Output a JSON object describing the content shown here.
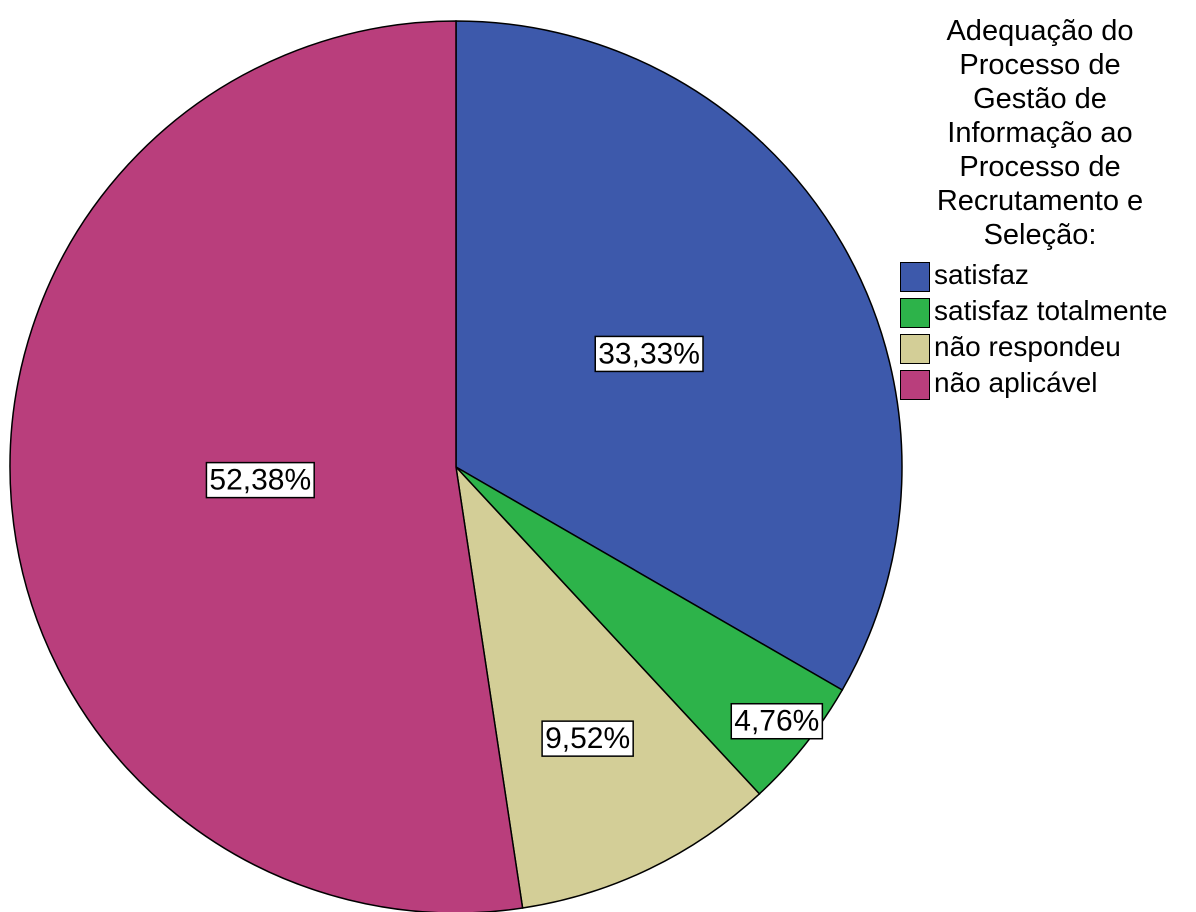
{
  "chart_data": {
    "type": "pie",
    "legend_title": [
      "Adequação do",
      "Processo de",
      "Gestão de",
      "Informação ao",
      "Processo de",
      "Recrutamento e",
      "Seleção:"
    ],
    "categories": [
      "satisfaz",
      "satisfaz totalmente",
      "não respondeu",
      "não aplicável"
    ],
    "values": [
      33.33,
      4.76,
      9.52,
      52.38
    ],
    "value_labels": [
      "33,33%",
      "4,76%",
      "9,52%",
      "52,38%"
    ],
    "colors": [
      "#3d59ab",
      "#2db34a",
      "#d3ce97",
      "#b93e7c"
    ],
    "legend": "right"
  }
}
